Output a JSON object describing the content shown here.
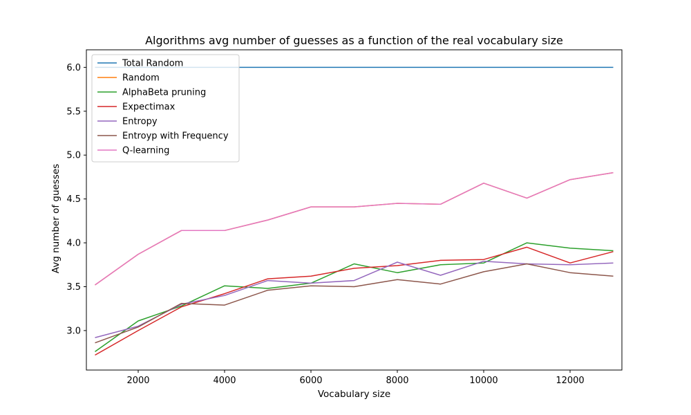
{
  "chart_data": {
    "type": "line",
    "title": "Algorithms avg number of guesses as a function of the real vocabulary size",
    "xlabel": "Vocabulary size",
    "ylabel": "Avg number of guesses",
    "xlim": [
      800,
      13200
    ],
    "ylim": [
      2.55,
      6.2
    ],
    "x_ticks": [
      2000,
      4000,
      6000,
      8000,
      10000,
      12000
    ],
    "y_ticks": [
      3.0,
      3.5,
      4.0,
      4.5,
      5.0,
      5.5,
      6.0
    ],
    "grid": false,
    "legend_position": "top-left",
    "x": [
      1000,
      2000,
      3000,
      4000,
      5000,
      6000,
      7000,
      8000,
      9000,
      10000,
      11000,
      12000,
      13000
    ],
    "series": [
      {
        "name": "Total Random",
        "color": "#1f77b4",
        "values": [
          6.0,
          6.0,
          6.0,
          6.0,
          6.0,
          6.0,
          6.0,
          6.0,
          6.0,
          6.0,
          6.0,
          6.0,
          6.0
        ]
      },
      {
        "name": "Random",
        "color": "#ff7f0e",
        "values": [
          3.52,
          3.87,
          4.14,
          4.14,
          4.26,
          4.41,
          4.41,
          4.45,
          4.44,
          4.68,
          4.51,
          4.72,
          4.8
        ]
      },
      {
        "name": "AlphaBeta pruning",
        "color": "#2ca02c",
        "values": [
          2.76,
          3.11,
          3.28,
          3.51,
          3.48,
          3.54,
          3.76,
          3.66,
          3.75,
          3.77,
          4.0,
          3.94,
          3.91
        ]
      },
      {
        "name": "Expectimax",
        "color": "#d62728",
        "values": [
          2.72,
          3.0,
          3.27,
          3.42,
          3.59,
          3.62,
          3.71,
          3.74,
          3.8,
          3.81,
          3.95,
          3.77,
          3.9
        ]
      },
      {
        "name": "Entropy",
        "color": "#9467bd",
        "values": [
          2.92,
          3.05,
          3.3,
          3.4,
          3.57,
          3.54,
          3.57,
          3.78,
          3.63,
          3.79,
          3.76,
          3.75,
          3.77
        ]
      },
      {
        "name": "Entroyp with Frequency",
        "color": "#8c564b",
        "values": [
          2.86,
          3.04,
          3.31,
          3.29,
          3.46,
          3.51,
          3.5,
          3.58,
          3.53,
          3.67,
          3.76,
          3.66,
          3.62
        ]
      },
      {
        "name": "Q-learning",
        "color": "#e377c2",
        "values": [
          3.52,
          3.87,
          4.14,
          4.14,
          4.26,
          4.41,
          4.41,
          4.45,
          4.44,
          4.68,
          4.51,
          4.72,
          4.8
        ]
      }
    ]
  }
}
